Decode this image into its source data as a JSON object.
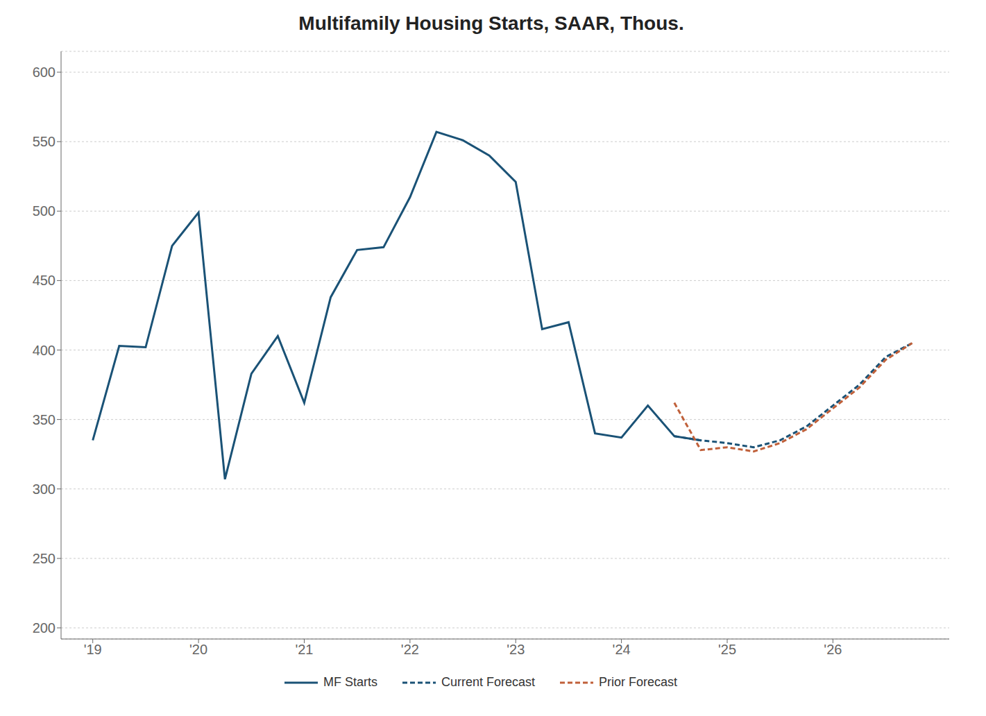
{
  "chart_data": {
    "type": "line",
    "title": "Multifamily Housing Starts, SAAR, Thous.",
    "series": [
      {
        "name": "MF Starts",
        "color": "#1a5276",
        "line_style": "solid",
        "x": [
          2019.0,
          2019.25,
          2019.5,
          2019.75,
          2020.0,
          2020.25,
          2020.5,
          2020.75,
          2021.0,
          2021.25,
          2021.5,
          2021.75,
          2022.0,
          2022.25,
          2022.5,
          2022.75,
          2023.0,
          2023.25,
          2023.5,
          2023.75,
          2024.0,
          2024.25,
          2024.5,
          2024.75
        ],
        "values": [
          335,
          403,
          402,
          475,
          499,
          307,
          383,
          410,
          362,
          438,
          472,
          474,
          510,
          557,
          551,
          540,
          521,
          415,
          420,
          340,
          337,
          360,
          338,
          335
        ]
      },
      {
        "name": "Current Forecast",
        "color": "#1a5276",
        "line_style": "dashed",
        "x": [
          2024.5,
          2024.75,
          2025.0,
          2025.25,
          2025.5,
          2025.75,
          2026.0,
          2026.25,
          2026.5,
          2026.75
        ],
        "values": [
          338,
          335,
          333,
          330,
          335,
          345,
          360,
          375,
          395,
          405
        ]
      },
      {
        "name": "Prior Forecast",
        "color": "#c0603a",
        "line_style": "dashed",
        "x": [
          2024.5,
          2024.75,
          2025.0,
          2025.25,
          2025.5,
          2025.75,
          2026.0,
          2026.25,
          2026.5,
          2026.75
        ],
        "values": [
          362,
          328,
          330,
          327,
          333,
          343,
          358,
          373,
          393,
          405
        ]
      }
    ],
    "xlim": [
      2018.7,
      2027.1
    ],
    "xticks": [
      {
        "value": 2019.0,
        "label": "'19"
      },
      {
        "value": 2020.0,
        "label": "'20"
      },
      {
        "value": 2021.0,
        "label": "'21"
      },
      {
        "value": 2022.0,
        "label": "'22"
      },
      {
        "value": 2023.0,
        "label": "'23"
      },
      {
        "value": 2024.0,
        "label": "'24"
      },
      {
        "value": 2025.0,
        "label": "'25"
      },
      {
        "value": 2026.0,
        "label": "'26"
      }
    ],
    "ylim": [
      192,
      615
    ],
    "yticks": [
      200,
      250,
      300,
      350,
      400,
      450,
      500,
      550,
      600
    ],
    "grid": "y",
    "legend": "bottom"
  }
}
